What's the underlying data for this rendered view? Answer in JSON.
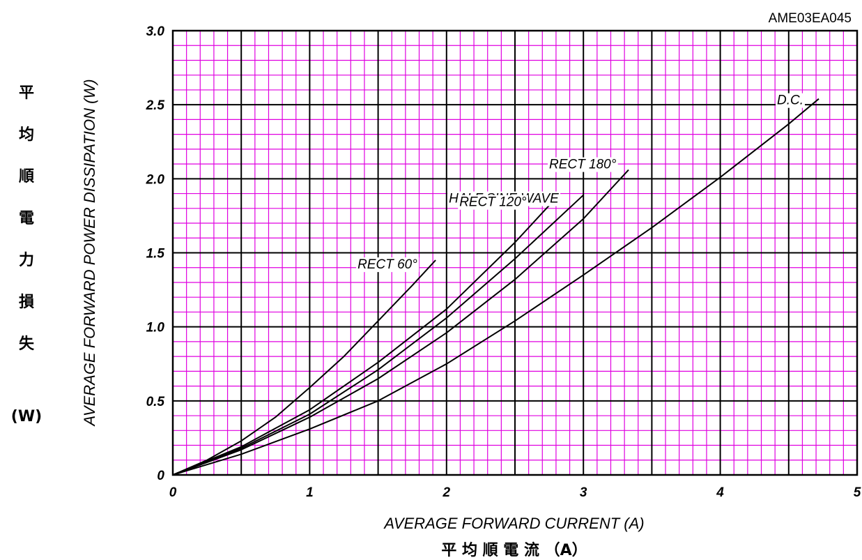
{
  "chart_data": {
    "type": "line",
    "code": "AME03EA045",
    "xlabel": "AVERAGE FORWARD CURRENT (A)",
    "xlabel_jp": "平 均 順 電 流 （A）",
    "ylabel": "AVERAGE FORWARD POWER DISSIPATION (W)",
    "ylabel_jp": [
      "平",
      "均",
      "順",
      "電",
      "力",
      "損",
      "失"
    ],
    "ylabel_jp_unit": "(W)",
    "xlim": [
      0,
      5
    ],
    "ylim": [
      0,
      3.0
    ],
    "x_ticks": [
      0,
      1,
      2,
      3,
      4,
      5
    ],
    "x_tick_labels": [
      "0",
      "1",
      "2",
      "3",
      "4",
      "5"
    ],
    "y_ticks": [
      0,
      0.5,
      1.0,
      1.5,
      2.0,
      2.5,
      3.0
    ],
    "y_tick_labels": [
      "0",
      "0.5",
      "1.0",
      "1.5",
      "2.0",
      "2.5",
      "3.0"
    ],
    "grid": true,
    "colors": {
      "major_grid": "#000000",
      "minor_grid": "#e000e0",
      "series": "#000000"
    },
    "series": [
      {
        "name": "RECT 60°",
        "x": [
          0,
          0.25,
          0.5,
          0.75,
          1.0,
          1.25,
          1.5,
          1.75,
          1.92
        ],
        "y": [
          0,
          0.1,
          0.23,
          0.39,
          0.59,
          0.8,
          1.04,
          1.28,
          1.45
        ]
      },
      {
        "name": "HALF SINE WAVE",
        "x": [
          0,
          0.5,
          1.0,
          1.5,
          2.0,
          2.5,
          2.75
        ],
        "y": [
          0,
          0.19,
          0.44,
          0.76,
          1.12,
          1.57,
          1.82
        ]
      },
      {
        "name": "RECT 120°",
        "x": [
          0,
          0.5,
          1.0,
          1.5,
          2.0,
          2.5,
          3.0
        ],
        "y": [
          0,
          0.18,
          0.41,
          0.71,
          1.06,
          1.46,
          1.89
        ]
      },
      {
        "name": "RECT 180°",
        "x": [
          0,
          0.5,
          1.0,
          1.5,
          2.0,
          2.5,
          3.0,
          3.33
        ],
        "y": [
          0,
          0.17,
          0.39,
          0.65,
          0.96,
          1.32,
          1.73,
          2.06
        ]
      },
      {
        "name": "D.C.",
        "x": [
          0,
          0.5,
          1.0,
          1.5,
          2.0,
          2.5,
          3.0,
          3.5,
          4.0,
          4.5,
          4.72
        ],
        "y": [
          0,
          0.14,
          0.31,
          0.5,
          0.75,
          1.04,
          1.35,
          1.67,
          2.01,
          2.37,
          2.54
        ]
      }
    ]
  }
}
